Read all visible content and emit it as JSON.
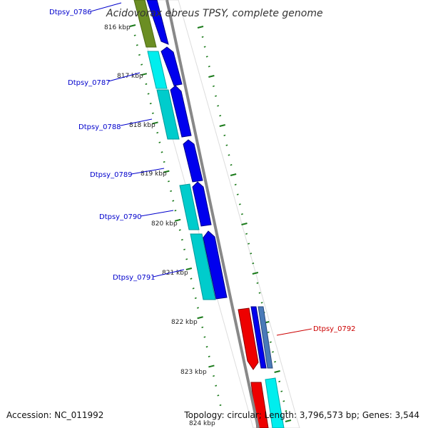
{
  "title": "Acidovorax ebreus TPSY, complete genome",
  "footer": {
    "accession": "Accession: NC_011992",
    "summary": "Topology: circular; Length: 3,796,573 bp; Genes: 3,544"
  },
  "colors": {
    "backbone": "#888888",
    "tick": "#1a7a1a",
    "gene_label": "#0000cc",
    "highlight_label": "#cc0000",
    "forward_gene": "#0000ee",
    "cds_block": "#00dddd",
    "highlight_gene": "#ee0000",
    "olive_block": "#6b8e23",
    "steel_block": "#4a7ab8"
  },
  "ticks": [
    "816 kbp",
    "817 kbp",
    "818 kbp",
    "819 kbp",
    "820 kbp",
    "821 kbp",
    "822 kbp",
    "823 kbp",
    "824 kbp"
  ],
  "genes": [
    {
      "label": "Dtpsy_0786",
      "highlight": false
    },
    {
      "label": "Dtpsy_0787",
      "highlight": false
    },
    {
      "label": "Dtpsy_0788",
      "highlight": false
    },
    {
      "label": "Dtpsy_0789",
      "highlight": false
    },
    {
      "label": "Dtpsy_0790",
      "highlight": false
    },
    {
      "label": "Dtpsy_0791",
      "highlight": false
    },
    {
      "label": "Dtpsy_0792",
      "highlight": true
    }
  ]
}
